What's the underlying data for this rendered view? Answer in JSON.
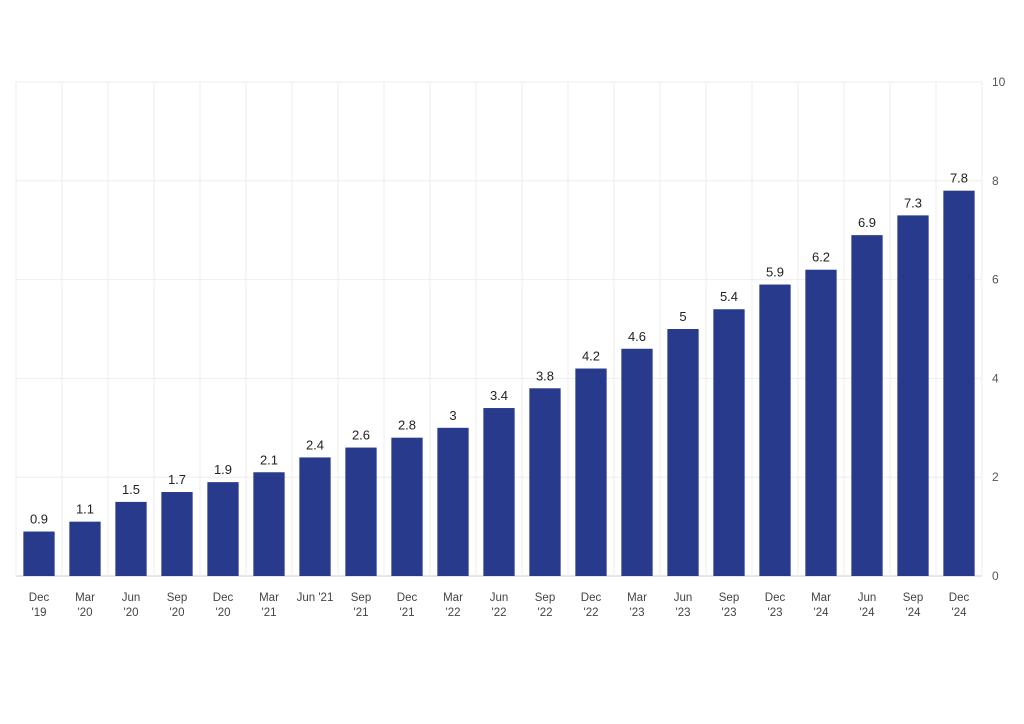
{
  "chart_data": {
    "type": "bar",
    "categories": [
      [
        "Dec",
        "'19"
      ],
      [
        "Mar",
        "'20"
      ],
      [
        "Jun",
        "'20"
      ],
      [
        "Sep",
        "'20"
      ],
      [
        "Dec",
        "'20"
      ],
      [
        "Mar",
        "'21"
      ],
      [
        "Jun '21"
      ],
      [
        "Sep",
        "'21"
      ],
      [
        "Dec",
        "'21"
      ],
      [
        "Mar",
        "'22"
      ],
      [
        "Jun",
        "'22"
      ],
      [
        "Sep",
        "'22"
      ],
      [
        "Dec",
        "'22"
      ],
      [
        "Mar",
        "'23"
      ],
      [
        "Jun",
        "'23"
      ],
      [
        "Sep",
        "'23"
      ],
      [
        "Dec",
        "'23"
      ],
      [
        "Mar",
        "'24"
      ],
      [
        "Jun",
        "'24"
      ],
      [
        "Sep",
        "'24"
      ],
      [
        "Dec",
        "'24"
      ]
    ],
    "values": [
      0.9,
      1.1,
      1.5,
      1.7,
      1.9,
      2.1,
      2.4,
      2.6,
      2.8,
      3,
      3.4,
      3.8,
      4.2,
      4.6,
      5,
      5.4,
      5.9,
      6.2,
      6.9,
      7.3,
      7.8
    ],
    "ylim": [
      0,
      10
    ],
    "yticks": [
      0,
      2,
      4,
      6,
      8,
      10
    ],
    "y_axis_side": "right",
    "grid": true,
    "bar_color": "#283a8c",
    "title": "",
    "xlabel": "",
    "ylabel": ""
  }
}
